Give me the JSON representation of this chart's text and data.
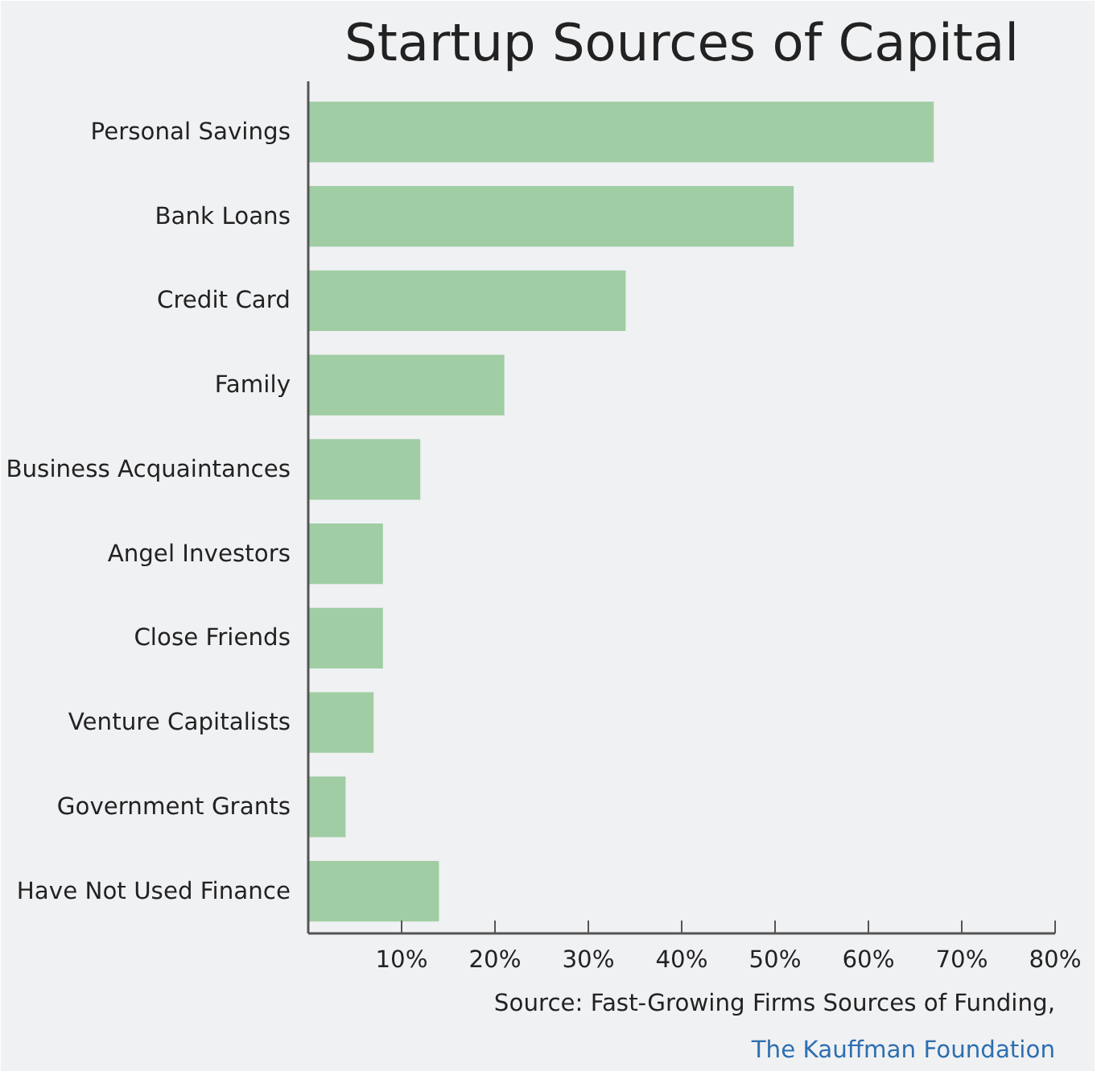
{
  "chart_data": {
    "type": "bar",
    "orientation": "horizontal",
    "title": "Startup Sources of Capital",
    "categories": [
      "Personal Savings",
      "Bank Loans",
      "Credit Card",
      "Family",
      "Business Acquaintances",
      "Angel Investors",
      "Close Friends",
      "Venture Capitalists",
      "Government Grants",
      "Have Not Used Finance"
    ],
    "values": [
      67,
      52,
      34,
      21,
      12,
      8,
      8,
      7,
      4,
      14
    ],
    "color": "#a0cda4",
    "xlim": [
      0,
      80
    ],
    "xticks": [
      {
        "value": 10,
        "label": "10%"
      },
      {
        "value": 20,
        "label": "20%"
      },
      {
        "value": 30,
        "label": "30%"
      },
      {
        "value": 40,
        "label": "40%"
      },
      {
        "value": 50,
        "label": "50%"
      },
      {
        "value": 60,
        "label": "60%"
      },
      {
        "value": 70,
        "label": "70%"
      },
      {
        "value": 80,
        "label": "80%"
      }
    ],
    "grid": false,
    "annotations": [
      "Source: Fast-Growing Firms Sources of Funding,",
      "The Kauffman Foundation"
    ]
  }
}
